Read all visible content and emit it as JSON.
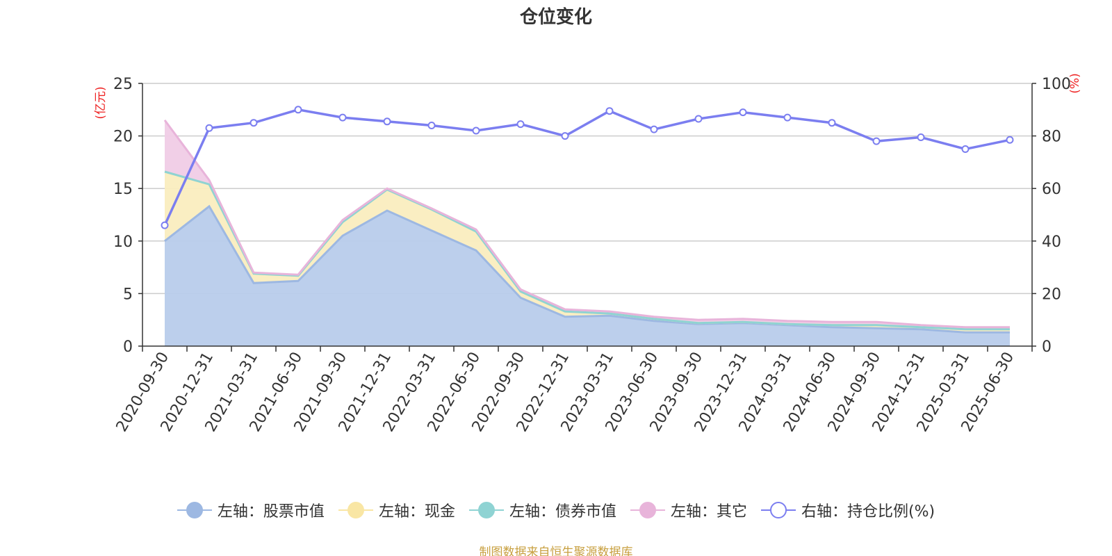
{
  "chart_data": {
    "type": "area",
    "title": "仓位变化",
    "categories": [
      "2020-09-30",
      "2020-12-31",
      "2021-03-31",
      "2021-06-30",
      "2021-09-30",
      "2021-12-31",
      "2022-03-31",
      "2022-06-30",
      "2022-09-30",
      "2022-12-31",
      "2023-03-31",
      "2023-06-30",
      "2023-09-30",
      "2023-12-31",
      "2024-03-31",
      "2024-06-30",
      "2024-09-30",
      "2024-12-31",
      "2025-03-31",
      "2025-06-30"
    ],
    "left_axis": {
      "label": "(亿元)",
      "ylim": [
        0,
        25
      ],
      "ticks": [
        0,
        5,
        10,
        15,
        20,
        25
      ]
    },
    "right_axis": {
      "label": "(%)",
      "ylim": [
        0,
        100
      ],
      "ticks": [
        0,
        20,
        40,
        60,
        80,
        100
      ]
    },
    "stacked_series": [
      {
        "name": "左轴：股票市值",
        "color": "#9db8e2",
        "fill": "#b8cceb",
        "values": [
          10.0,
          13.3,
          6.0,
          6.2,
          10.5,
          12.9,
          11.0,
          9.1,
          4.6,
          2.8,
          2.9,
          2.4,
          2.1,
          2.2,
          2.0,
          1.8,
          1.7,
          1.6,
          1.3,
          1.3
        ]
      },
      {
        "name": "左轴：现金",
        "color": "#f9e6a4",
        "fill": "#faedbf",
        "values": [
          6.6,
          2.1,
          0.9,
          0.5,
          1.3,
          2.0,
          2.0,
          1.8,
          0.6,
          0.5,
          0.2,
          0.2,
          0.1,
          0.1,
          0.1,
          0.2,
          0.3,
          0.2,
          0.3,
          0.3
        ]
      },
      {
        "name": "左轴：债券市值",
        "color": "#8fd3d3",
        "fill": "#b6e3e3",
        "values": [
          0,
          0,
          0,
          0,
          0,
          0,
          0,
          0,
          0,
          0,
          0,
          0,
          0,
          0,
          0,
          0,
          0,
          0,
          0,
          0
        ]
      },
      {
        "name": "左轴：其它",
        "color": "#e8b4da",
        "fill": "#f0cce6",
        "values": [
          4.9,
          0.4,
          0.1,
          0.1,
          0.2,
          0.1,
          0.1,
          0.2,
          0.2,
          0.2,
          0.2,
          0.2,
          0.3,
          0.3,
          0.3,
          0.3,
          0.3,
          0.2,
          0.2,
          0.2
        ]
      }
    ],
    "line_series": {
      "name": "右轴：持仓比例(%)",
      "color": "#7b7ef0",
      "values": [
        46,
        83,
        85,
        90,
        87,
        85.5,
        84,
        82,
        84.5,
        80,
        89.5,
        82.5,
        86.5,
        89,
        87,
        85,
        78,
        79.5,
        75,
        78.5
      ]
    },
    "grid": true,
    "legend_position": "bottom"
  },
  "source_note": "制图数据来自恒生聚源数据库"
}
